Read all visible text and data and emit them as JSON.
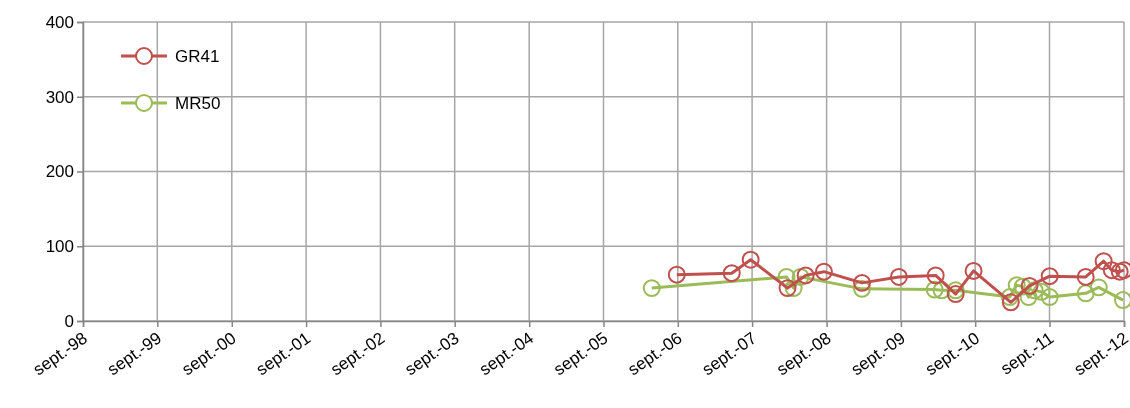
{
  "chart_data": {
    "type": "line",
    "xlim": [
      "1998-09-01",
      "2012-09-01"
    ],
    "xticks": [
      {
        "value": "1998-09-01",
        "label": "sept.-98"
      },
      {
        "value": "1999-09-01",
        "label": "sept.-99"
      },
      {
        "value": "2000-09-01",
        "label": "sept.-00"
      },
      {
        "value": "2001-09-01",
        "label": "sept.-01"
      },
      {
        "value": "2002-09-01",
        "label": "sept.-02"
      },
      {
        "value": "2003-09-01",
        "label": "sept.-03"
      },
      {
        "value": "2004-09-01",
        "label": "sept.-04"
      },
      {
        "value": "2005-09-01",
        "label": "sept.-05"
      },
      {
        "value": "2006-09-01",
        "label": "sept.-06"
      },
      {
        "value": "2007-09-01",
        "label": "sept.-07"
      },
      {
        "value": "2008-09-01",
        "label": "sept.-08"
      },
      {
        "value": "2009-09-01",
        "label": "sept.-09"
      },
      {
        "value": "2010-09-01",
        "label": "sept.-10"
      },
      {
        "value": "2011-09-01",
        "label": "sept.-11"
      },
      {
        "value": "2012-09-01",
        "label": "sept.-12"
      }
    ],
    "ylim": [
      0,
      400
    ],
    "yticks": [
      0,
      100,
      200,
      300,
      400
    ],
    "grid": true,
    "legend": "top left",
    "marker": "circle",
    "line_style": "solid",
    "series": [
      {
        "name": "GR41",
        "color": "#c0504d",
        "x": [
          "2006-08-27",
          "2007-05-24",
          "2007-08-25",
          "2008-02-22",
          "2008-05-21",
          "2008-08-19",
          "2009-02-22",
          "2009-08-22",
          "2010-02-19",
          "2010-05-28",
          "2010-08-24",
          "2011-02-23",
          "2011-05-26",
          "2011-09-02",
          "2012-02-26",
          "2012-05-24",
          "2012-07-03",
          "2012-08-11",
          "2012-09-01"
        ],
        "values": [
          62,
          64,
          82,
          44,
          61,
          66,
          51,
          59,
          61,
          36,
          67,
          25,
          47,
          60,
          59,
          80,
          68,
          66,
          68
        ]
      },
      {
        "name": "MR50",
        "color": "#9bbb59",
        "x": [
          "2006-04-26",
          "2008-02-17",
          "2008-03-23",
          "2008-04-26",
          "2009-02-22",
          "2010-02-14",
          "2010-03-20",
          "2010-05-28",
          "2011-02-18",
          "2011-03-24",
          "2011-04-22",
          "2011-05-21",
          "2011-06-20",
          "2011-07-24",
          "2011-09-02",
          "2012-02-26",
          "2012-04-30",
          "2012-08-27"
        ],
        "values": [
          44,
          59,
          44,
          59,
          43,
          42,
          41,
          41,
          32,
          48,
          46,
          32,
          41,
          39,
          32,
          37,
          45,
          28
        ]
      }
    ]
  }
}
